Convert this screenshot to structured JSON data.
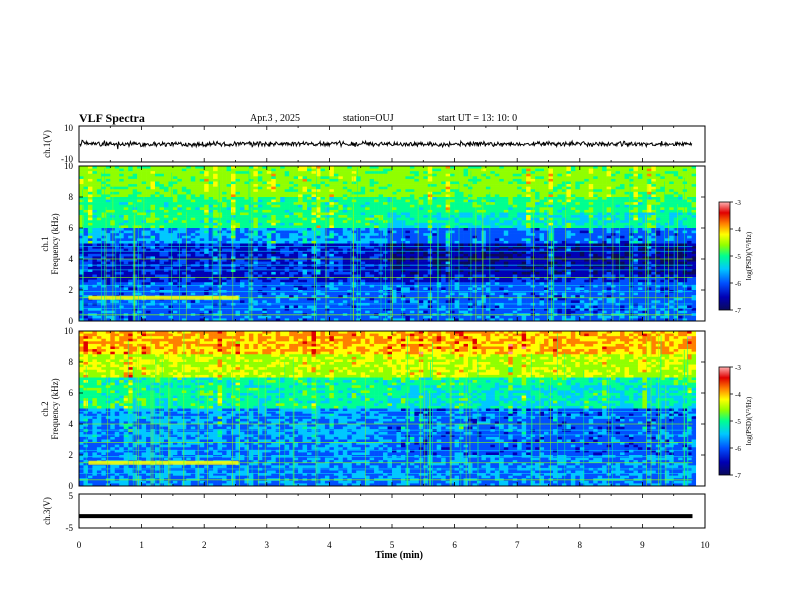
{
  "header": {
    "title": "VLF Spectra",
    "date": "Apr.3  , 2025",
    "station": "station=OUJ",
    "start": "start  UT  =   13: 10: 0"
  },
  "colors": {
    "colormap": [
      "#0a0a5a",
      "#0000b4",
      "#0050ff",
      "#00c8ff",
      "#00ff90",
      "#90ff00",
      "#ffff00",
      "#ff8000",
      "#e00000",
      "#ff9090",
      "#ffffff"
    ],
    "trace": "#000000"
  },
  "chart_data": [
    {
      "type": "line",
      "panel": "ch1 waveform",
      "ylabel": "ch.1(V)",
      "ylim": [
        -10,
        10
      ],
      "yticks": [
        "10",
        "-10"
      ],
      "x": [
        0,
        10
      ],
      "amplitude_approx": 1.2
    },
    {
      "type": "heatmap",
      "panel": "ch1 spectrogram",
      "ylabel": "ch.1\nFrequency  (kHz)",
      "ylim": [
        0,
        10
      ],
      "yticks": [
        "0",
        "2",
        "4",
        "6",
        "8",
        "10"
      ],
      "xlim": [
        0,
        10
      ],
      "colorbar": {
        "label": "log(PSD)(V²/Hz)",
        "range": [
          -7,
          -3
        ],
        "ticks": [
          "-3",
          "-4",
          "-5",
          "-6",
          "-7"
        ]
      }
    },
    {
      "type": "heatmap",
      "panel": "ch2 spectrogram",
      "ylabel": "ch.2\nFrequency  (kHz)",
      "ylim": [
        0,
        10
      ],
      "yticks": [
        "0",
        "2",
        "4",
        "6",
        "8",
        "10"
      ],
      "xlim": [
        0,
        10
      ],
      "colorbar": {
        "label": "log(PSD)(V²/Hz)",
        "range": [
          -7,
          -3
        ],
        "ticks": [
          "-3",
          "-4",
          "-5",
          "-6",
          "-7"
        ]
      }
    },
    {
      "type": "line",
      "panel": "ch3 waveform",
      "ylabel": "ch.3(V)",
      "ylim": [
        -5,
        5
      ],
      "yticks": [
        "5",
        "-5"
      ],
      "x": [
        0,
        9.8
      ],
      "y": [
        -1.5,
        -1.5
      ]
    }
  ],
  "xaxis": {
    "label": "Time  (min)",
    "ticks": [
      "0",
      "1",
      "2",
      "3",
      "4",
      "5",
      "6",
      "7",
      "8",
      "9",
      "10"
    ],
    "xlim": [
      0,
      10
    ]
  }
}
